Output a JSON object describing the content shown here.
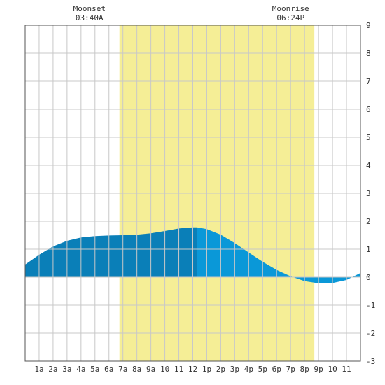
{
  "chart_data": {
    "type": "area",
    "x_unit": "hour of day",
    "xlim": [
      0,
      24
    ],
    "ylim": [
      -3,
      9
    ],
    "y_ticks": [
      9,
      8,
      7,
      6,
      5,
      4,
      3,
      2,
      1,
      0,
      -1,
      -2,
      -3
    ],
    "x_ticks": [
      {
        "x": 1,
        "label": "1a"
      },
      {
        "x": 2,
        "label": "2a"
      },
      {
        "x": 3,
        "label": "3a"
      },
      {
        "x": 4,
        "label": "4a"
      },
      {
        "x": 5,
        "label": "5a"
      },
      {
        "x": 6,
        "label": "6a"
      },
      {
        "x": 7,
        "label": "7a"
      },
      {
        "x": 8,
        "label": "8a"
      },
      {
        "x": 9,
        "label": "9a"
      },
      {
        "x": 10,
        "label": "10"
      },
      {
        "x": 11,
        "label": "11"
      },
      {
        "x": 12,
        "label": "12"
      },
      {
        "x": 13,
        "label": "1p"
      },
      {
        "x": 14,
        "label": "2p"
      },
      {
        "x": 15,
        "label": "3p"
      },
      {
        "x": 16,
        "label": "4p"
      },
      {
        "x": 17,
        "label": "5p"
      },
      {
        "x": 18,
        "label": "6p"
      },
      {
        "x": 19,
        "label": "7p"
      },
      {
        "x": 20,
        "label": "8p"
      },
      {
        "x": 21,
        "label": "9p"
      },
      {
        "x": 22,
        "label": "10"
      },
      {
        "x": 23,
        "label": "11"
      }
    ],
    "daylight": {
      "start": 6.75,
      "end": 20.7
    },
    "split_x": 12.3,
    "tide": {
      "x": [
        0,
        1,
        2,
        3,
        4,
        5,
        6,
        7,
        8,
        9,
        10,
        11,
        12,
        12.3,
        13,
        14,
        15,
        16,
        17,
        18,
        19,
        20,
        21,
        22,
        23,
        24
      ],
      "y": [
        0.45,
        0.8,
        1.1,
        1.3,
        1.42,
        1.47,
        1.49,
        1.5,
        1.52,
        1.57,
        1.65,
        1.74,
        1.78,
        1.78,
        1.72,
        1.52,
        1.22,
        0.88,
        0.55,
        0.26,
        0.03,
        -0.14,
        -0.22,
        -0.21,
        -0.1,
        0.15
      ]
    },
    "annotations": [
      {
        "x": 4.6,
        "title": "Moonset",
        "time": "03:40A"
      },
      {
        "x": 19.0,
        "title": "Moonrise",
        "time": "06:24P"
      }
    ],
    "colors": {
      "daylight": "#f5ee96",
      "tide_before": "#0a7fb8",
      "tide_after": "#0a98d8",
      "grid": "#c8c8c8",
      "frame": "#555555"
    }
  }
}
